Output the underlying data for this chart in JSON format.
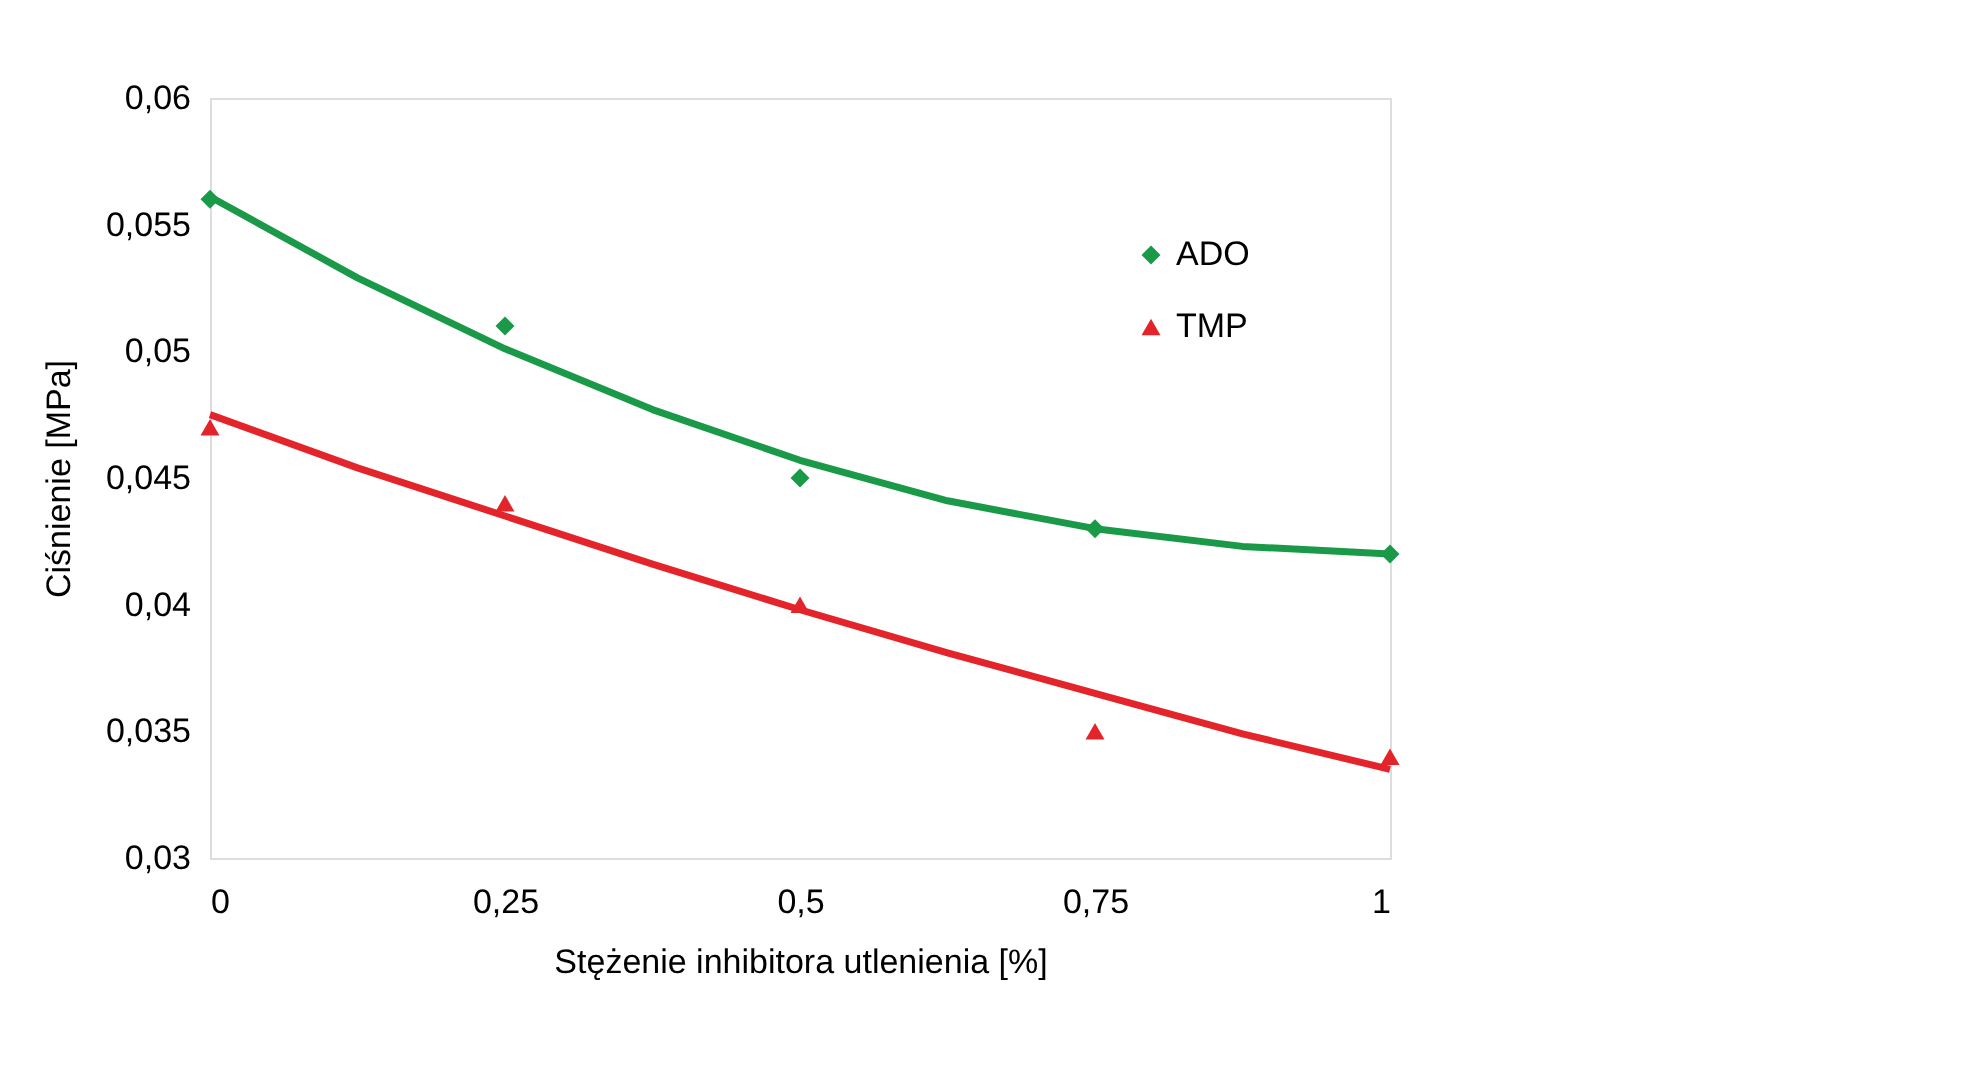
{
  "chart_data": {
    "type": "scatter",
    "xlabel": "Stężenie inhibitora utlenienia [%]",
    "ylabel": "Ciśnienie [MPa]",
    "x": [
      0,
      0.25,
      0.5,
      0.75,
      1
    ],
    "series": [
      {
        "name": "ADO",
        "color": "#1a9a48",
        "marker": "diamond",
        "values": [
          0.056,
          0.051,
          0.045,
          0.043,
          0.042
        ]
      },
      {
        "name": "TMP",
        "color": "#e3242b",
        "marker": "triangle",
        "values": [
          0.047,
          0.044,
          0.04,
          0.035,
          0.034
        ]
      },
      {
        "type": "line",
        "color": "#1a9a48",
        "marker": "none",
        "x": [
          0,
          0.125,
          0.25,
          0.375,
          0.5,
          0.625,
          0.75,
          0.875,
          1
        ],
        "values": [
          0.0561,
          0.0529,
          0.0501,
          0.0477,
          0.0457,
          0.0441,
          0.043,
          0.0423,
          0.042
        ]
      },
      {
        "type": "line",
        "color": "#e3242b",
        "marker": "none",
        "x": [
          0,
          0.125,
          0.25,
          0.375,
          0.5,
          0.625,
          0.75,
          0.875,
          1
        ],
        "values": [
          0.0475,
          0.0454,
          0.0435,
          0.0416,
          0.0398,
          0.0381,
          0.0365,
          0.0349,
          0.0335
        ]
      }
    ],
    "xlim": [
      0,
      1
    ],
    "xticks": [
      0,
      {
        "value": 0.25,
        "label": "0,25"
      },
      {
        "value": 0.5,
        "label": "0,5"
      },
      {
        "value": 0.75,
        "label": "0,75"
      },
      1
    ],
    "ylim": [
      0.03,
      0.06
    ],
    "yticks": [
      {
        "value": 0.03,
        "label": "0,03"
      },
      {
        "value": 0.035,
        "label": "0,035"
      },
      {
        "value": 0.04,
        "label": "0,04"
      },
      {
        "value": 0.045,
        "label": "0,045"
      },
      {
        "value": 0.05,
        "label": "0,05"
      },
      {
        "value": 0.055,
        "label": "0,055"
      },
      {
        "value": 0.06,
        "label": "0,06"
      }
    ],
    "grid": false,
    "legend": "top right"
  }
}
